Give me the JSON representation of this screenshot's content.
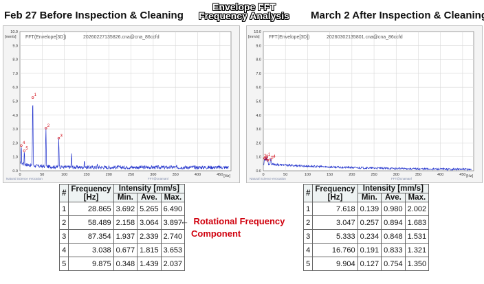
{
  "header": {
    "left_title": "Feb 27 Before Inspection & Cleaning",
    "center_title_line1": "Envelope FFT",
    "center_title_line2": "Frequency Analysis",
    "right_title": "March 2 After Inspection & Cleaning"
  },
  "panels": [
    {
      "plot_title": "FFT(Envelope[3D])",
      "file": "20260227135826.cna@cna_86ccfd",
      "brand": "Natural Science eVocation",
      "footer": "FFT@cnamanl"
    },
    {
      "plot_title": "FFT(Envelope[3D])",
      "file": "20260302135801.cna@cna_86ccfd",
      "brand": "Natural Science eVocation",
      "footer": "FFT@cnamanl"
    }
  ],
  "chart_data": [
    {
      "type": "line",
      "ylabel": "[mm/s]",
      "xlabel": "[Hz]",
      "xlim": [
        0,
        475
      ],
      "ylim": [
        0,
        10
      ],
      "xticks": [
        "0",
        "50",
        "100",
        "150",
        "200",
        "250",
        "300",
        "350",
        "400",
        "450"
      ],
      "yticks": [
        "0.0",
        "1.0",
        "2.0",
        "3.0",
        "4.0",
        "5.0",
        "6.0",
        "7.0",
        "8.0",
        "9.0",
        "10.0"
      ],
      "grid": true,
      "series_color": "#2233cc",
      "baseline": 0.25,
      "peaks": [
        {
          "x": 3.038,
          "y": 1.815,
          "label": "4"
        },
        {
          "x": 9.875,
          "y": 1.439,
          "label": "5"
        },
        {
          "x": 28.865,
          "y": 5.265,
          "label": "1"
        },
        {
          "x": 58.489,
          "y": 3.064,
          "label": "2"
        },
        {
          "x": 87.354,
          "y": 2.339,
          "label": "3"
        },
        {
          "x": 116.0,
          "y": 1.25,
          "label": ""
        },
        {
          "x": 145.0,
          "y": 0.75,
          "label": ""
        },
        {
          "x": 174.0,
          "y": 0.5,
          "label": ""
        }
      ]
    },
    {
      "type": "line",
      "ylabel": "[mm/s]",
      "xlabel": "[Hz]",
      "xlim": [
        0,
        475
      ],
      "ylim": [
        0,
        10
      ],
      "xticks": [
        "0",
        "50",
        "100",
        "150",
        "200",
        "250",
        "300",
        "350",
        "400",
        "450"
      ],
      "yticks": [
        "0.0",
        "1.0",
        "2.0",
        "3.0",
        "4.0",
        "5.0",
        "6.0",
        "7.0",
        "8.0",
        "9.0",
        "10.0"
      ],
      "grid": true,
      "series_color": "#2233cc",
      "baseline": 0.45,
      "peaks": [
        {
          "x": 3.047,
          "y": 0.894,
          "label": "2"
        },
        {
          "x": 5.333,
          "y": 0.848,
          "label": "3"
        },
        {
          "x": 7.618,
          "y": 0.98,
          "label": "1"
        },
        {
          "x": 16.76,
          "y": 0.833,
          "label": "4"
        },
        {
          "x": 9.904,
          "y": 0.754,
          "label": "5"
        }
      ]
    }
  ],
  "tables": [
    {
      "headers": {
        "no": "#",
        "frequency": "Frequency",
        "frequency_unit": "[Hz]",
        "intensity": "Intensity [mm/s]",
        "min": "Min.",
        "ave": "Ave.",
        "max": "Max."
      },
      "rows": [
        [
          "1",
          "28.865",
          "3.692",
          "5.265",
          "6.490"
        ],
        [
          "2",
          "58.489",
          "2.158",
          "3.064",
          "3.897"
        ],
        [
          "3",
          "87.354",
          "1.937",
          "2.339",
          "2.740"
        ],
        [
          "4",
          "3.038",
          "0.677",
          "1.815",
          "3.653"
        ],
        [
          "5",
          "9.875",
          "0.348",
          "1.439",
          "2.037"
        ]
      ]
    },
    {
      "headers": {
        "no": "#",
        "frequency": "Frequency",
        "frequency_unit": "[Hz]",
        "intensity": "Intensity [mm/s]",
        "min": "Min.",
        "ave": "Ave.",
        "max": "Max."
      },
      "rows": [
        [
          "1",
          "7.618",
          "0.139",
          "0.980",
          "2.002"
        ],
        [
          "2",
          "3.047",
          "0.257",
          "0.894",
          "1.683"
        ],
        [
          "3",
          "5.333",
          "0.234",
          "0.848",
          "1.531"
        ],
        [
          "4",
          "16.760",
          "0.191",
          "0.833",
          "1.321"
        ],
        [
          "5",
          "9.904",
          "0.127",
          "0.754",
          "1.350"
        ]
      ]
    }
  ],
  "annotation": {
    "arrow": "←",
    "line1": "Rotational Frequency",
    "line2": "Component",
    "color": "#d0000d"
  }
}
